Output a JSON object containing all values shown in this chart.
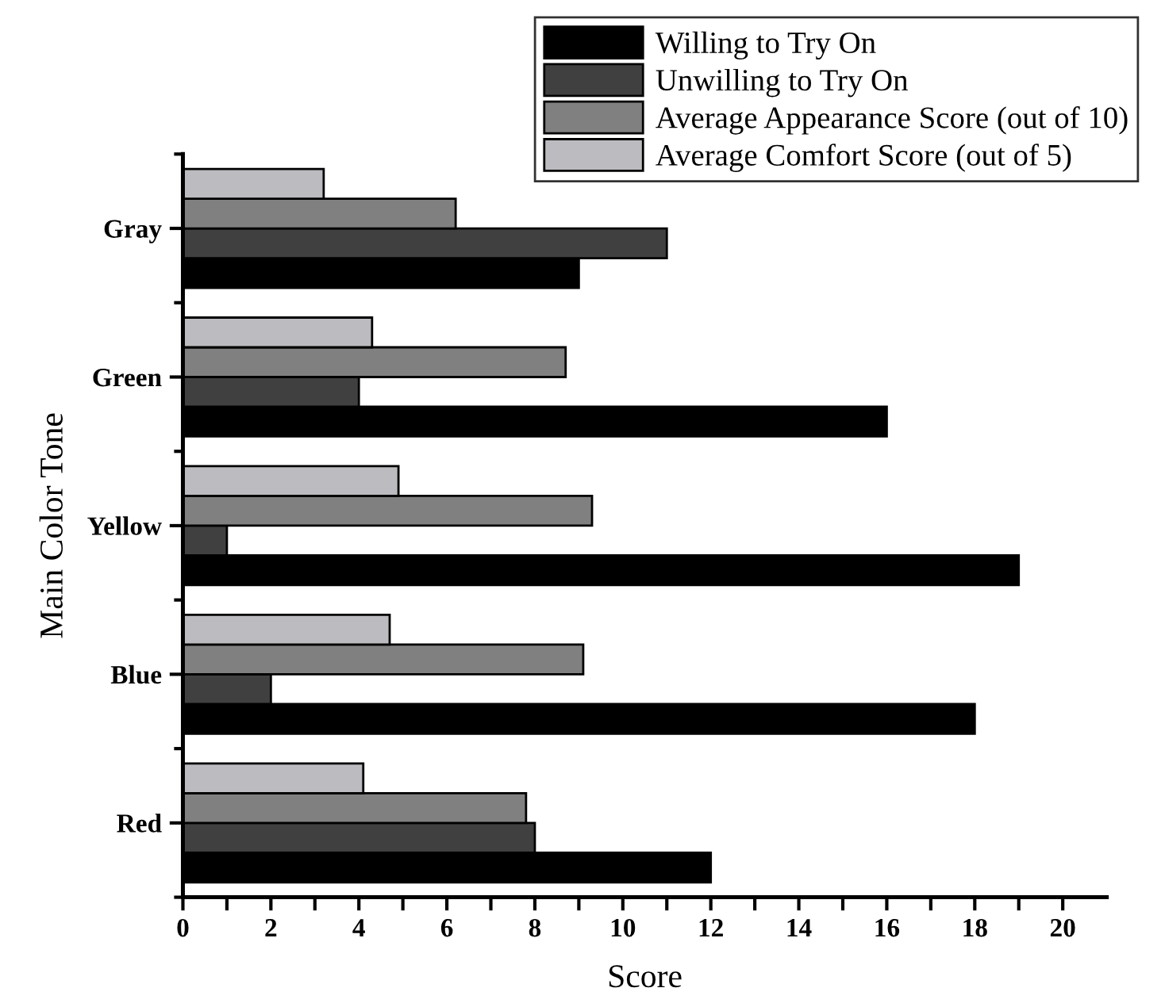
{
  "chart_data": {
    "type": "bar",
    "orientation": "horizontal",
    "xlabel": "Score",
    "ylabel": "Main Color Tone",
    "categories": [
      "Gray",
      "Green",
      "Yellow",
      "Blue",
      "Red"
    ],
    "series": [
      {
        "name": "Willing to Try On",
        "color": "#000000",
        "values": [
          9,
          16,
          19,
          18,
          12
        ]
      },
      {
        "name": "Unwilling to Try On",
        "color": "#404040",
        "values": [
          11,
          4,
          1,
          2,
          8
        ]
      },
      {
        "name": "Average Appearance Score (out of 10)",
        "color": "#808080",
        "values": [
          6.2,
          8.7,
          9.3,
          9.1,
          7.8
        ]
      },
      {
        "name": "Average Comfort Score (out of 5)",
        "color": "#bcbcc0",
        "values": [
          3.2,
          4.3,
          4.9,
          4.7,
          4.1
        ]
      }
    ],
    "xlim": [
      0,
      21
    ],
    "xticks": [
      0,
      {
        "value": 1,
        "label": null
      },
      2,
      {
        "value": 3,
        "label": null
      },
      4,
      {
        "value": 5,
        "label": null
      },
      6,
      {
        "value": 7,
        "label": null
      },
      8,
      {
        "value": 9,
        "label": null
      },
      10,
      {
        "value": 11,
        "label": null
      },
      12,
      {
        "value": 13,
        "label": null
      },
      14,
      {
        "value": 15,
        "label": null
      },
      16,
      {
        "value": 17,
        "label": null
      },
      18,
      {
        "value": 19,
        "label": null
      },
      20
    ],
    "grid": false,
    "legend": "top right"
  }
}
